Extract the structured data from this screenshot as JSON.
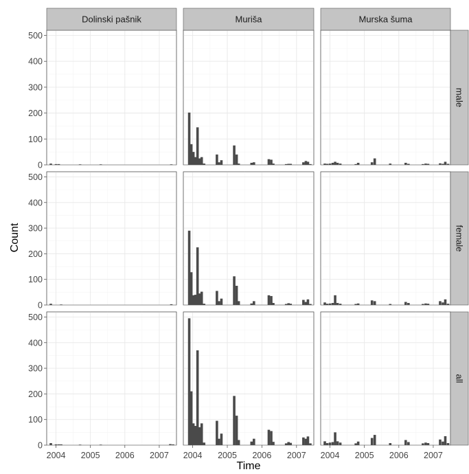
{
  "chart_data": {
    "type": "bar",
    "facet_columns": [
      "Dolinski pašnik",
      "Muriša",
      "Murska šuma"
    ],
    "facet_rows": [
      "male",
      "female",
      "all"
    ],
    "xlabel": "Time",
    "ylabel": "Count",
    "x_ticks": [
      "2004",
      "2005",
      "2006",
      "2007"
    ],
    "y_ticks": [
      "0",
      "100",
      "200",
      "300",
      "400",
      "500"
    ],
    "ylim": [
      0,
      520
    ],
    "xlim": [
      2003.73,
      2007.5
    ],
    "grid": true,
    "panels": [
      {
        "column": "Dolinski pašnik",
        "row": "male",
        "x": [
          2003.85,
          2004.0,
          2004.08,
          2004.7,
          2005.3,
          2007.35
        ],
        "values": [
          5,
          3,
          3,
          2,
          2,
          2
        ]
      },
      {
        "column": "Dolinski pašnik",
        "row": "female",
        "x": [
          2003.85,
          2004.15,
          2007.35
        ],
        "values": [
          5,
          2,
          3
        ]
      },
      {
        "column": "Dolinski pašnik",
        "row": "all",
        "x": [
          2003.85,
          2004.0,
          2004.08,
          2004.15,
          2004.7,
          2005.3,
          2007.32,
          2007.4
        ],
        "values": [
          8,
          3,
          3,
          3,
          2,
          2,
          4,
          3
        ]
      },
      {
        "column": "Muriša",
        "row": "male",
        "x": [
          2003.9,
          2003.96,
          2004.02,
          2004.08,
          2004.14,
          2004.2,
          2004.26,
          2004.33,
          2004.7,
          2004.76,
          2004.83,
          2005.2,
          2005.27,
          2005.33,
          2005.7,
          2005.77,
          2006.2,
          2006.27,
          2006.33,
          2006.7,
          2006.77,
          2006.83,
          2007.2,
          2007.27,
          2007.33,
          2007.4
        ],
        "values": [
          202,
          80,
          50,
          30,
          145,
          25,
          30,
          5,
          40,
          10,
          18,
          75,
          40,
          5,
          8,
          10,
          22,
          20,
          5,
          3,
          4,
          4,
          10,
          15,
          12,
          3
        ]
      },
      {
        "column": "Muriša",
        "row": "female",
        "x": [
          2003.9,
          2003.96,
          2004.02,
          2004.08,
          2004.14,
          2004.2,
          2004.26,
          2004.33,
          2004.7,
          2004.76,
          2004.83,
          2005.2,
          2005.27,
          2005.33,
          2005.7,
          2005.77,
          2006.2,
          2006.27,
          2006.33,
          2006.7,
          2006.77,
          2006.83,
          2007.2,
          2007.27,
          2007.33,
          2007.4
        ],
        "values": [
          290,
          128,
          38,
          40,
          225,
          45,
          52,
          5,
          55,
          15,
          25,
          112,
          75,
          15,
          6,
          15,
          38,
          35,
          8,
          4,
          7,
          5,
          20,
          12,
          22,
          4
        ]
      },
      {
        "column": "Muriša",
        "row": "all",
        "x": [
          2003.9,
          2003.96,
          2004.02,
          2004.08,
          2004.14,
          2004.2,
          2004.26,
          2004.33,
          2004.7,
          2004.76,
          2004.83,
          2005.2,
          2005.27,
          2005.33,
          2005.7,
          2005.77,
          2006.2,
          2006.27,
          2006.33,
          2006.7,
          2006.77,
          2006.83,
          2007.2,
          2007.27,
          2007.33,
          2007.4
        ],
        "values": [
          495,
          210,
          85,
          75,
          370,
          70,
          85,
          10,
          95,
          25,
          45,
          192,
          115,
          20,
          14,
          25,
          60,
          55,
          13,
          7,
          12,
          9,
          30,
          25,
          34,
          7
        ]
      },
      {
        "column": "Murska šuma",
        "row": "male",
        "x": [
          2003.85,
          2003.92,
          2004.0,
          2004.08,
          2004.15,
          2004.22,
          2004.3,
          2004.75,
          2004.82,
          2005.22,
          2005.3,
          2005.75,
          2006.2,
          2006.28,
          2006.7,
          2006.78,
          2006.85,
          2007.2,
          2007.28,
          2007.35,
          2007.43
        ],
        "values": [
          5,
          4,
          5,
          8,
          12,
          8,
          5,
          3,
          8,
          10,
          25,
          5,
          8,
          4,
          3,
          5,
          4,
          6,
          4,
          12,
          4
        ]
      },
      {
        "column": "Murska šuma",
        "row": "female",
        "x": [
          2003.85,
          2003.92,
          2004.0,
          2004.08,
          2004.15,
          2004.22,
          2004.3,
          2004.75,
          2004.82,
          2005.22,
          2005.3,
          2005.75,
          2006.2,
          2006.28,
          2006.7,
          2006.78,
          2006.85,
          2007.2,
          2007.28,
          2007.35,
          2007.43
        ],
        "values": [
          10,
          5,
          6,
          8,
          38,
          8,
          5,
          4,
          6,
          18,
          15,
          4,
          12,
          8,
          4,
          6,
          5,
          15,
          10,
          22,
          5
        ]
      },
      {
        "column": "Murska šuma",
        "row": "all",
        "x": [
          2003.85,
          2003.92,
          2004.0,
          2004.08,
          2004.15,
          2004.22,
          2004.3,
          2004.75,
          2004.82,
          2005.22,
          2005.3,
          2005.75,
          2006.2,
          2006.28,
          2006.7,
          2006.78,
          2006.85,
          2007.2,
          2007.28,
          2007.35,
          2007.43
        ],
        "values": [
          15,
          8,
          10,
          12,
          50,
          15,
          10,
          7,
          14,
          28,
          40,
          8,
          20,
          12,
          7,
          10,
          8,
          22,
          14,
          35,
          8
        ]
      }
    ]
  }
}
